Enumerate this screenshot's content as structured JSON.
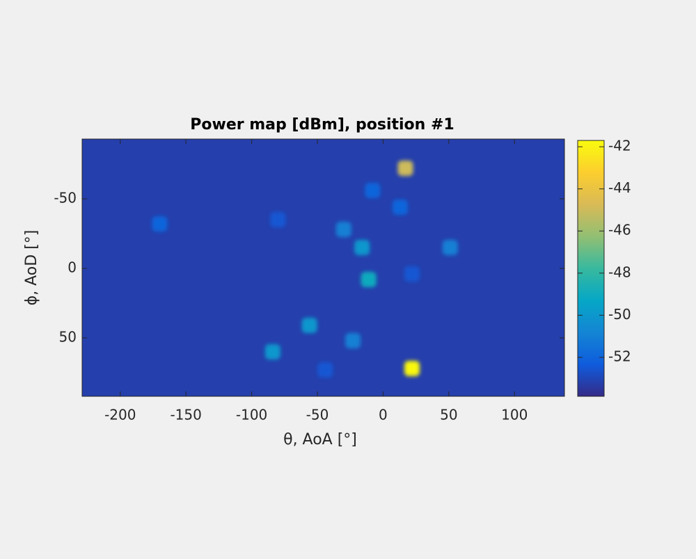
{
  "chart_data": {
    "type": "heatmap",
    "title": "Power map [dBm], position #1",
    "x_label": "θ, AoA [°]",
    "y_label": "ϕ, AoD [°]",
    "x": [
      17,
      22,
      -16,
      -11,
      -56,
      -23,
      -84,
      -30,
      51,
      -170,
      -80,
      -8,
      13,
      22,
      -44
    ],
    "y": [
      -72,
      72,
      -15,
      8,
      41,
      52,
      60,
      -28,
      -15,
      -32,
      -35,
      -56,
      -44,
      4,
      73
    ],
    "values": [
      -45,
      -41.8,
      -50,
      -49,
      -50,
      -51,
      -50,
      -51,
      -51,
      -52,
      -52.5,
      -52,
      -52,
      -52.5,
      -52.5
    ],
    "background": -53.2,
    "xlim": [
      -229,
      138
    ],
    "xticks": [
      -200,
      -150,
      -100,
      -50,
      0,
      50,
      100
    ],
    "ylim": [
      -93,
      92
    ],
    "yticks": [
      -50,
      0,
      50
    ],
    "y_reversed": true,
    "clim": [
      -53.85,
      -41.7
    ],
    "cticks": [
      -52,
      -50,
      -48,
      -46,
      -44,
      -42
    ],
    "colormap": "parula"
  }
}
